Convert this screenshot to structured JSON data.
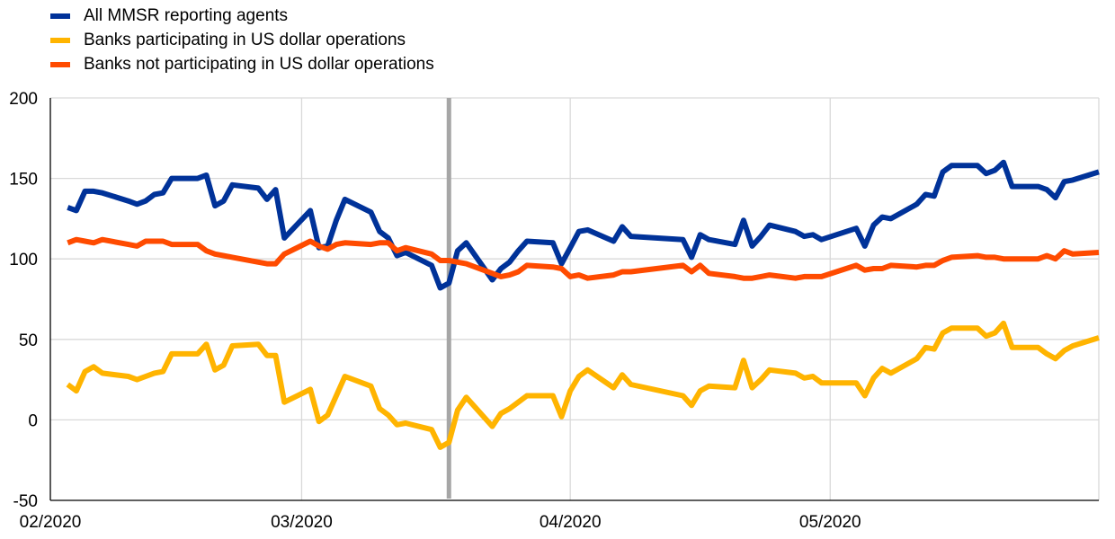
{
  "chart_data": {
    "type": "line",
    "title": "",
    "xlabel": "",
    "ylabel": "",
    "ylim": [
      -50,
      200
    ],
    "yticks": [
      -50,
      0,
      50,
      100,
      150,
      200
    ],
    "xticks": [
      {
        "label": "02/2020",
        "date": "2020-02-01"
      },
      {
        "label": "03/2020",
        "date": "2020-03-01"
      },
      {
        "label": "04/2020",
        "date": "2020-04-01"
      },
      {
        "label": "05/2020",
        "date": "2020-05-01"
      }
    ],
    "xlim": [
      "2020-02-01",
      "2020-06-01"
    ],
    "grid": true,
    "legend": "top-left",
    "vertical_marker": {
      "date": "2020-03-18",
      "color": "#a6a6a6"
    },
    "series": [
      {
        "name": "All MMSR reporting agents",
        "color": "#003299",
        "points": [
          [
            "2020-02-03",
            132
          ],
          [
            "2020-02-04",
            130
          ],
          [
            "2020-02-05",
            142
          ],
          [
            "2020-02-06",
            142
          ],
          [
            "2020-02-07",
            141
          ],
          [
            "2020-02-10",
            136
          ],
          [
            "2020-02-11",
            134
          ],
          [
            "2020-02-12",
            136
          ],
          [
            "2020-02-13",
            140
          ],
          [
            "2020-02-14",
            141
          ],
          [
            "2020-02-15",
            150
          ],
          [
            "2020-02-18",
            150
          ],
          [
            "2020-02-19",
            152
          ],
          [
            "2020-02-20",
            133
          ],
          [
            "2020-02-21",
            136
          ],
          [
            "2020-02-22",
            146
          ],
          [
            "2020-02-25",
            144
          ],
          [
            "2020-02-26",
            137
          ],
          [
            "2020-02-27",
            143
          ],
          [
            "2020-02-28",
            113
          ],
          [
            "2020-03-02",
            130
          ],
          [
            "2020-03-03",
            107
          ],
          [
            "2020-03-04",
            108
          ],
          [
            "2020-03-05",
            124
          ],
          [
            "2020-03-06",
            137
          ],
          [
            "2020-03-09",
            129
          ],
          [
            "2020-03-10",
            117
          ],
          [
            "2020-03-11",
            113
          ],
          [
            "2020-03-12",
            102
          ],
          [
            "2020-03-13",
            104
          ],
          [
            "2020-03-16",
            96
          ],
          [
            "2020-03-17",
            82
          ],
          [
            "2020-03-18",
            85
          ],
          [
            "2020-03-19",
            105
          ],
          [
            "2020-03-20",
            110
          ],
          [
            "2020-03-23",
            87
          ],
          [
            "2020-03-24",
            94
          ],
          [
            "2020-03-25",
            98
          ],
          [
            "2020-03-26",
            105
          ],
          [
            "2020-03-27",
            111
          ],
          [
            "2020-03-30",
            110
          ],
          [
            "2020-03-31",
            97
          ],
          [
            "2020-04-01",
            107
          ],
          [
            "2020-04-02",
            117
          ],
          [
            "2020-04-03",
            118
          ],
          [
            "2020-04-06",
            111
          ],
          [
            "2020-04-07",
            120
          ],
          [
            "2020-04-08",
            114
          ],
          [
            "2020-04-14",
            112
          ],
          [
            "2020-04-15",
            101
          ],
          [
            "2020-04-16",
            115
          ],
          [
            "2020-04-17",
            112
          ],
          [
            "2020-04-20",
            109
          ],
          [
            "2020-04-21",
            124
          ],
          [
            "2020-04-22",
            108
          ],
          [
            "2020-04-23",
            114
          ],
          [
            "2020-04-24",
            121
          ],
          [
            "2020-04-27",
            117
          ],
          [
            "2020-04-28",
            114
          ],
          [
            "2020-04-29",
            115
          ],
          [
            "2020-04-30",
            112
          ],
          [
            "2020-05-04",
            119
          ],
          [
            "2020-05-05",
            108
          ],
          [
            "2020-05-06",
            121
          ],
          [
            "2020-05-07",
            126
          ],
          [
            "2020-05-08",
            125
          ],
          [
            "2020-05-11",
            134
          ],
          [
            "2020-05-12",
            140
          ],
          [
            "2020-05-13",
            139
          ],
          [
            "2020-05-14",
            154
          ],
          [
            "2020-05-15",
            158
          ],
          [
            "2020-05-18",
            158
          ],
          [
            "2020-05-19",
            153
          ],
          [
            "2020-05-20",
            155
          ],
          [
            "2020-05-21",
            160
          ],
          [
            "2020-05-22",
            145
          ],
          [
            "2020-05-25",
            145
          ],
          [
            "2020-05-26",
            143
          ],
          [
            "2020-05-27",
            138
          ],
          [
            "2020-05-28",
            148
          ],
          [
            "2020-05-29",
            149
          ],
          [
            "2020-06-01",
            154
          ]
        ]
      },
      {
        "name": "Banks participating in US dollar operations",
        "color": "#ffb400",
        "points": [
          [
            "2020-02-03",
            22
          ],
          [
            "2020-02-04",
            18
          ],
          [
            "2020-02-05",
            30
          ],
          [
            "2020-02-06",
            33
          ],
          [
            "2020-02-07",
            29
          ],
          [
            "2020-02-10",
            27
          ],
          [
            "2020-02-11",
            25
          ],
          [
            "2020-02-12",
            27
          ],
          [
            "2020-02-13",
            29
          ],
          [
            "2020-02-14",
            30
          ],
          [
            "2020-02-15",
            41
          ],
          [
            "2020-02-18",
            41
          ],
          [
            "2020-02-19",
            47
          ],
          [
            "2020-02-20",
            31
          ],
          [
            "2020-02-21",
            34
          ],
          [
            "2020-02-22",
            46
          ],
          [
            "2020-02-25",
            47
          ],
          [
            "2020-02-26",
            40
          ],
          [
            "2020-02-27",
            40
          ],
          [
            "2020-02-28",
            11
          ],
          [
            "2020-03-02",
            19
          ],
          [
            "2020-03-03",
            -1
          ],
          [
            "2020-03-04",
            3
          ],
          [
            "2020-03-05",
            15
          ],
          [
            "2020-03-06",
            27
          ],
          [
            "2020-03-09",
            21
          ],
          [
            "2020-03-10",
            7
          ],
          [
            "2020-03-11",
            3
          ],
          [
            "2020-03-12",
            -3
          ],
          [
            "2020-03-13",
            -2
          ],
          [
            "2020-03-16",
            -6
          ],
          [
            "2020-03-17",
            -17
          ],
          [
            "2020-03-18",
            -14
          ],
          [
            "2020-03-19",
            6
          ],
          [
            "2020-03-20",
            14
          ],
          [
            "2020-03-23",
            -4
          ],
          [
            "2020-03-24",
            4
          ],
          [
            "2020-03-25",
            7
          ],
          [
            "2020-03-26",
            11
          ],
          [
            "2020-03-27",
            15
          ],
          [
            "2020-03-30",
            15
          ],
          [
            "2020-03-31",
            2
          ],
          [
            "2020-04-01",
            18
          ],
          [
            "2020-04-02",
            27
          ],
          [
            "2020-04-03",
            31
          ],
          [
            "2020-04-06",
            20
          ],
          [
            "2020-04-07",
            28
          ],
          [
            "2020-04-08",
            22
          ],
          [
            "2020-04-14",
            15
          ],
          [
            "2020-04-15",
            9
          ],
          [
            "2020-04-16",
            18
          ],
          [
            "2020-04-17",
            21
          ],
          [
            "2020-04-20",
            20
          ],
          [
            "2020-04-21",
            37
          ],
          [
            "2020-04-22",
            20
          ],
          [
            "2020-04-23",
            25
          ],
          [
            "2020-04-24",
            31
          ],
          [
            "2020-04-27",
            29
          ],
          [
            "2020-04-28",
            26
          ],
          [
            "2020-04-29",
            27
          ],
          [
            "2020-04-30",
            23
          ],
          [
            "2020-05-04",
            23
          ],
          [
            "2020-05-05",
            15
          ],
          [
            "2020-05-06",
            26
          ],
          [
            "2020-05-07",
            32
          ],
          [
            "2020-05-08",
            29
          ],
          [
            "2020-05-11",
            38
          ],
          [
            "2020-05-12",
            45
          ],
          [
            "2020-05-13",
            44
          ],
          [
            "2020-05-14",
            54
          ],
          [
            "2020-05-15",
            57
          ],
          [
            "2020-05-18",
            57
          ],
          [
            "2020-05-19",
            52
          ],
          [
            "2020-05-20",
            54
          ],
          [
            "2020-05-21",
            60
          ],
          [
            "2020-05-22",
            45
          ],
          [
            "2020-05-25",
            45
          ],
          [
            "2020-05-26",
            41
          ],
          [
            "2020-05-27",
            38
          ],
          [
            "2020-05-28",
            43
          ],
          [
            "2020-05-29",
            46
          ],
          [
            "2020-06-01",
            51
          ]
        ]
      },
      {
        "name": "Banks not participating in US dollar operations",
        "color": "#ff4b00",
        "points": [
          [
            "2020-02-03",
            110
          ],
          [
            "2020-02-04",
            112
          ],
          [
            "2020-02-05",
            111
          ],
          [
            "2020-02-06",
            110
          ],
          [
            "2020-02-07",
            112
          ],
          [
            "2020-02-10",
            109
          ],
          [
            "2020-02-11",
            108
          ],
          [
            "2020-02-12",
            111
          ],
          [
            "2020-02-13",
            111
          ],
          [
            "2020-02-14",
            111
          ],
          [
            "2020-02-15",
            109
          ],
          [
            "2020-02-18",
            109
          ],
          [
            "2020-02-19",
            105
          ],
          [
            "2020-02-20",
            103
          ],
          [
            "2020-02-21",
            102
          ],
          [
            "2020-02-22",
            101
          ],
          [
            "2020-02-25",
            98
          ],
          [
            "2020-02-26",
            97
          ],
          [
            "2020-02-27",
            97
          ],
          [
            "2020-02-28",
            103
          ],
          [
            "2020-03-02",
            111
          ],
          [
            "2020-03-03",
            108
          ],
          [
            "2020-03-04",
            106
          ],
          [
            "2020-03-05",
            109
          ],
          [
            "2020-03-06",
            110
          ],
          [
            "2020-03-09",
            109
          ],
          [
            "2020-03-10",
            110
          ],
          [
            "2020-03-11",
            110
          ],
          [
            "2020-03-12",
            105
          ],
          [
            "2020-03-13",
            107
          ],
          [
            "2020-03-16",
            103
          ],
          [
            "2020-03-17",
            99
          ],
          [
            "2020-03-18",
            99
          ],
          [
            "2020-03-19",
            98
          ],
          [
            "2020-03-20",
            97
          ],
          [
            "2020-03-23",
            91
          ],
          [
            "2020-03-24",
            89
          ],
          [
            "2020-03-25",
            90
          ],
          [
            "2020-03-26",
            92
          ],
          [
            "2020-03-27",
            96
          ],
          [
            "2020-03-30",
            95
          ],
          [
            "2020-03-31",
            94
          ],
          [
            "2020-04-01",
            89
          ],
          [
            "2020-04-02",
            90
          ],
          [
            "2020-04-03",
            88
          ],
          [
            "2020-04-06",
            90
          ],
          [
            "2020-04-07",
            92
          ],
          [
            "2020-04-08",
            92
          ],
          [
            "2020-04-14",
            96
          ],
          [
            "2020-04-15",
            92
          ],
          [
            "2020-04-16",
            96
          ],
          [
            "2020-04-17",
            91
          ],
          [
            "2020-04-20",
            89
          ],
          [
            "2020-04-21",
            88
          ],
          [
            "2020-04-22",
            88
          ],
          [
            "2020-04-23",
            89
          ],
          [
            "2020-04-24",
            90
          ],
          [
            "2020-04-27",
            88
          ],
          [
            "2020-04-28",
            89
          ],
          [
            "2020-04-29",
            89
          ],
          [
            "2020-04-30",
            89
          ],
          [
            "2020-05-04",
            96
          ],
          [
            "2020-05-05",
            93
          ],
          [
            "2020-05-06",
            94
          ],
          [
            "2020-05-07",
            94
          ],
          [
            "2020-05-08",
            96
          ],
          [
            "2020-05-11",
            95
          ],
          [
            "2020-05-12",
            96
          ],
          [
            "2020-05-13",
            96
          ],
          [
            "2020-05-14",
            99
          ],
          [
            "2020-05-15",
            101
          ],
          [
            "2020-05-18",
            102
          ],
          [
            "2020-05-19",
            101
          ],
          [
            "2020-05-20",
            101
          ],
          [
            "2020-05-21",
            100
          ],
          [
            "2020-05-22",
            100
          ],
          [
            "2020-05-25",
            100
          ],
          [
            "2020-05-26",
            102
          ],
          [
            "2020-05-27",
            100
          ],
          [
            "2020-05-28",
            105
          ],
          [
            "2020-05-29",
            103
          ],
          [
            "2020-06-01",
            104
          ]
        ]
      }
    ]
  }
}
